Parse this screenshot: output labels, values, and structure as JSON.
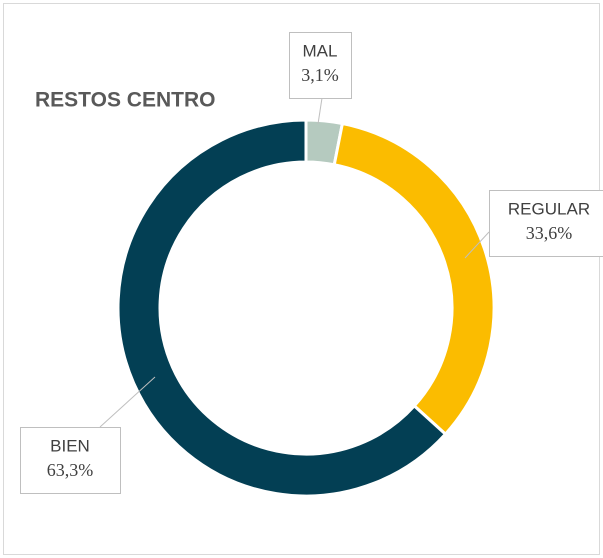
{
  "chart_data": {
    "type": "pie",
    "title": "RESTOS CENTRO",
    "categories": [
      "MAL",
      "REGULAR",
      "BIEN"
    ],
    "values": [
      3.1,
      33.6,
      63.3
    ],
    "value_labels": [
      "3,1%",
      "33,6%",
      "63,3%"
    ],
    "colors": [
      "#b5cabf",
      "#fbbc00",
      "#033f54"
    ],
    "donut": true
  }
}
